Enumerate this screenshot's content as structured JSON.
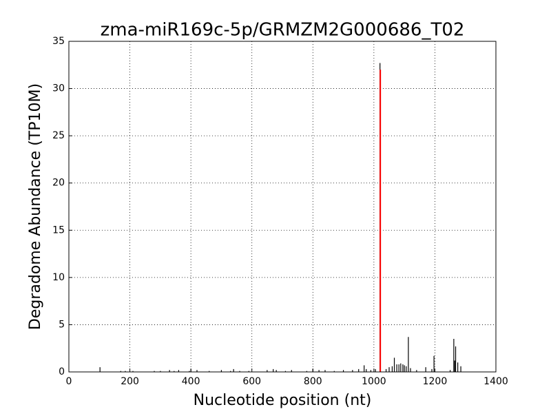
{
  "chart_data": {
    "type": "stem",
    "title": "zma-miR169c-5p/GRMZM2G000686_T02",
    "x_label": "Nucleotide position (nt)",
    "y_label": "Degradome Abundance (TP10M)",
    "xlim": [
      0,
      1400
    ],
    "xticks": [
      0,
      200,
      400,
      600,
      800,
      1000,
      1200,
      1400
    ],
    "ylim": [
      0,
      35
    ],
    "yticks": [
      0,
      5,
      10,
      15,
      20,
      25,
      30,
      35
    ],
    "grid": true,
    "series": [
      {
        "color": "#000000",
        "x": [
          102,
          170,
          185,
          210,
          280,
          300,
          330,
          345,
          360,
          395,
          400,
          420,
          460,
          500,
          530,
          540,
          560,
          590,
          650,
          670,
          680,
          710,
          730,
          780,
          800,
          820,
          840,
          870,
          900,
          930,
          950,
          968,
          975,
          990,
          1005,
          1020,
          1040,
          1050,
          1060,
          1067,
          1075,
          1082,
          1088,
          1095,
          1100,
          1106,
          1113,
          1120,
          1140,
          1170,
          1190,
          1197,
          1250,
          1262,
          1265,
          1268,
          1275,
          1285
        ],
        "values": [
          0.5,
          0.1,
          0.1,
          0.1,
          0.1,
          0.1,
          0.2,
          0.1,
          0.2,
          0.1,
          0.3,
          0.2,
          0.1,
          0.2,
          0.1,
          0.3,
          0.1,
          0.1,
          0.2,
          0.3,
          0.2,
          0.1,
          0.2,
          0.1,
          0.3,
          0.2,
          0.2,
          0.1,
          0.2,
          0.2,
          0.3,
          0.7,
          0.3,
          0.2,
          0.3,
          32.7,
          0.3,
          0.5,
          0.6,
          1.5,
          0.8,
          0.8,
          0.9,
          0.8,
          0.7,
          0.6,
          3.7,
          0.4,
          0.2,
          0.5,
          0.3,
          1.7,
          0.2,
          3.5,
          1.2,
          2.7,
          1.0,
          0.6
        ]
      },
      {
        "color": "#ff0000",
        "x": [
          1021
        ],
        "values": [
          32
        ]
      }
    ]
  }
}
